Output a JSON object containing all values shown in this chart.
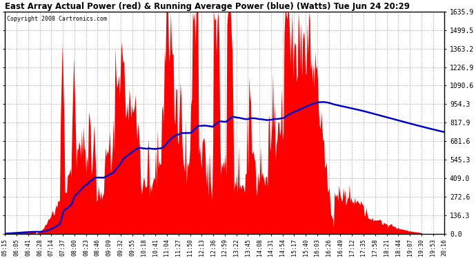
{
  "title": "East Array Actual Power (red) & Running Average Power (blue) (Watts) Tue Jun 24 20:29",
  "copyright": "Copyright 2008 Cartronics.com",
  "yticks": [
    0.0,
    136.3,
    272.6,
    409.0,
    545.3,
    681.6,
    817.9,
    954.3,
    1090.6,
    1226.9,
    1363.2,
    1499.5,
    1635.9
  ],
  "ymax": 1635.9,
  "ymin": 0.0,
  "background_color": "#ffffff",
  "plot_bg_color": "#ffffff",
  "red_color": "#ff0000",
  "blue_color": "#0000cc",
  "grid_color": "#b0b0b0",
  "x_labels": [
    "05:15",
    "06:05",
    "06:41",
    "06:28",
    "07:14",
    "07:37",
    "08:00",
    "08:23",
    "08:46",
    "09:09",
    "09:32",
    "09:55",
    "10:18",
    "10:41",
    "11:04",
    "11:27",
    "11:50",
    "12:13",
    "12:36",
    "12:59",
    "13:22",
    "13:45",
    "14:08",
    "14:31",
    "14:54",
    "15:17",
    "15:40",
    "16:03",
    "16:26",
    "16:49",
    "17:12",
    "17:35",
    "17:58",
    "18:21",
    "18:44",
    "19:07",
    "19:30",
    "19:53",
    "20:16"
  ],
  "figwidth": 6.9,
  "figheight": 3.75,
  "dpi": 100
}
